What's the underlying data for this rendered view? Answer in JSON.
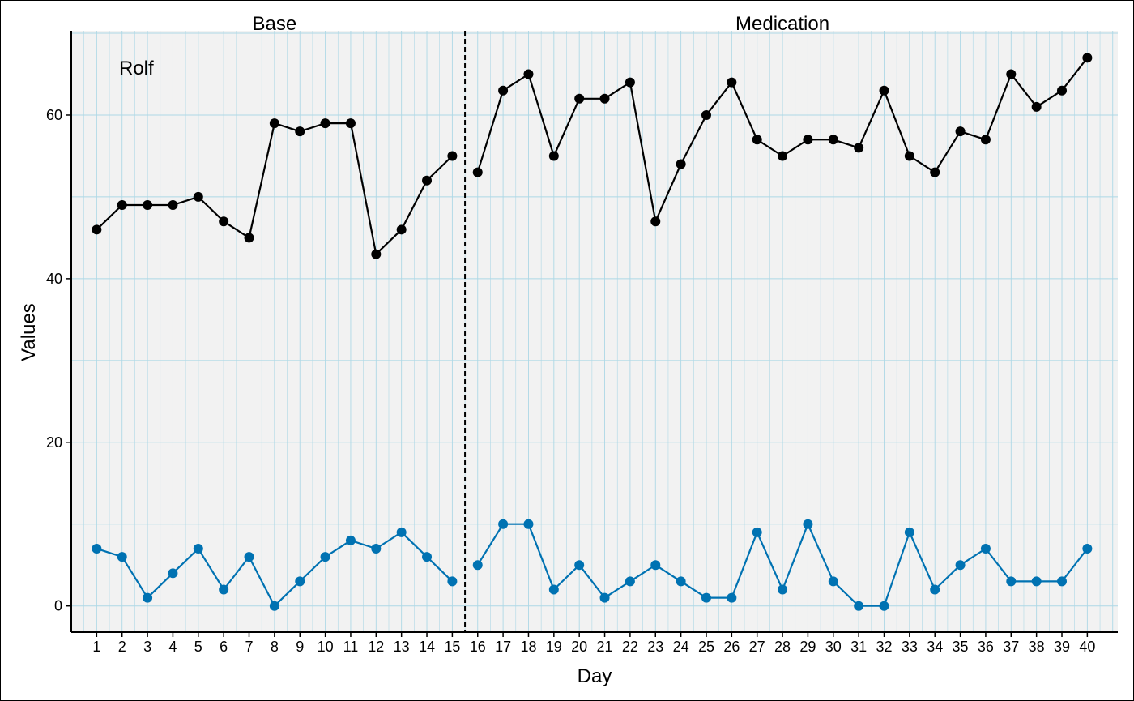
{
  "chart_data": {
    "type": "line",
    "title": "",
    "xlabel": "Day",
    "ylabel": "Values",
    "case_label": "Rolf",
    "phases": [
      {
        "label": "Base",
        "start": 1,
        "end": 15
      },
      {
        "label": "Medication",
        "start": 16,
        "end": 40
      }
    ],
    "phase_change_after": 15.5,
    "x": [
      1,
      2,
      3,
      4,
      5,
      6,
      7,
      8,
      9,
      10,
      11,
      12,
      13,
      14,
      15,
      16,
      17,
      18,
      19,
      20,
      21,
      22,
      23,
      24,
      25,
      26,
      27,
      28,
      29,
      30,
      31,
      32,
      33,
      34,
      35,
      36,
      37,
      38,
      39,
      40
    ],
    "xlim": [
      0,
      41.2
    ],
    "ylim": [
      -3.2,
      70.3
    ],
    "yticks": [
      0,
      20,
      40,
      60
    ],
    "grid": true,
    "legend": "none",
    "series": [
      {
        "color": "#000000",
        "values": [
          46,
          49,
          49,
          49,
          50,
          47,
          45,
          59,
          58,
          59,
          59,
          43,
          46,
          52,
          55,
          53,
          63,
          65,
          55,
          62,
          62,
          64,
          47,
          54,
          60,
          64,
          57,
          55,
          57,
          57,
          56,
          63,
          55,
          53,
          58,
          57,
          65,
          61,
          63,
          67
        ]
      },
      {
        "color": "#0072B2",
        "values": [
          7,
          6,
          1,
          4,
          7,
          2,
          6,
          0,
          3,
          6,
          8,
          7,
          9,
          6,
          3,
          5,
          10,
          10,
          2,
          5,
          1,
          3,
          5,
          3,
          1,
          1,
          9,
          2,
          10,
          3,
          0,
          0,
          9,
          2,
          5,
          7,
          3,
          3,
          3,
          7
        ]
      }
    ],
    "colors": {
      "panel_background": "#f2f2f2",
      "grid": "#add8e6",
      "phase_line": "#000000"
    }
  }
}
